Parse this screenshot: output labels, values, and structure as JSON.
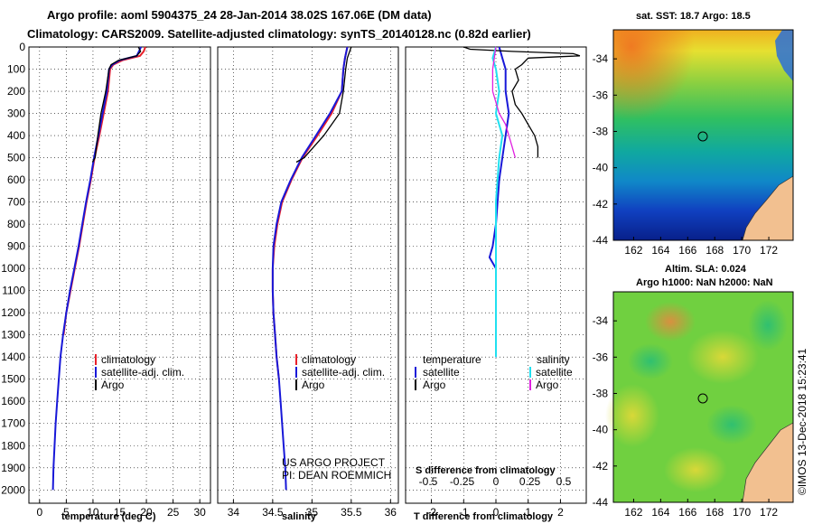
{
  "header": {
    "line1": "Argo profile: aoml 5904375_24 28-Jan-2014 38.02S 167.06E (DM data)",
    "line2": "Climatology: CARS2009. Satellite-adjusted climatology: synTS_20140128.nc (0.82d earlier)"
  },
  "sst_label": "sat. SST: 18.7 Argo: 18.5",
  "altim_label1": "Altim. SLA: 0.024",
  "altim_label2": "Argo h1000: NaN h2000: NaN",
  "credit_vertical": "©IMOS 13-Dec-2018 15:23:41",
  "project_line1": "US ARGO PROJECT",
  "project_line2": "PI: DEAN ROEMMICH",
  "legend": {
    "climatology": "climatology",
    "satellite_adj": "satellite-adj. clim.",
    "argo": "Argo",
    "temperature_heading": "temperature",
    "salinity_heading": "salinity",
    "satellite": "satellite"
  },
  "colors": {
    "climatology": "#e8202a",
    "satellite": "#1818d8",
    "argo": "#000000",
    "sal_satellite": "#20e0f0",
    "sal_argo": "#e020e0",
    "land": "#f2c090"
  },
  "chart_data": [
    {
      "type": "line",
      "name": "temperature-profile",
      "xlabel": "temperature (deg C)",
      "ylabel": "",
      "xlim": [
        -2,
        32
      ],
      "ylim": [
        2060,
        0
      ],
      "x_ticks": [
        0,
        5,
        10,
        15,
        20,
        25,
        30
      ],
      "y_ticks": [
        0,
        100,
        200,
        300,
        400,
        500,
        600,
        700,
        800,
        900,
        1000,
        1100,
        1200,
        1300,
        1400,
        1500,
        1600,
        1700,
        1800,
        1900,
        2000
      ],
      "series": [
        {
          "name": "climatology",
          "points": [
            [
              19.8,
              0
            ],
            [
              19.5,
              20
            ],
            [
              18.8,
              40
            ],
            [
              15.5,
              60
            ],
            [
              13.8,
              80
            ],
            [
              13.2,
              100
            ],
            [
              12.8,
              200
            ],
            [
              12.0,
              300
            ],
            [
              11.2,
              400
            ],
            [
              10.3,
              500
            ],
            [
              9.6,
              600
            ],
            [
              8.8,
              700
            ],
            [
              8.1,
              800
            ],
            [
              7.4,
              900
            ],
            [
              6.6,
              1000
            ],
            [
              5.8,
              1100
            ],
            [
              5.0,
              1200
            ],
            [
              4.5,
              1300
            ]
          ]
        },
        {
          "name": "satellite-adj. clim.",
          "points": [
            [
              19.0,
              0
            ],
            [
              18.6,
              20
            ],
            [
              18.2,
              40
            ],
            [
              15.0,
              60
            ],
            [
              13.6,
              80
            ],
            [
              13.0,
              100
            ],
            [
              12.6,
              200
            ],
            [
              11.8,
              300
            ],
            [
              11.0,
              400
            ],
            [
              10.2,
              500
            ],
            [
              9.5,
              600
            ],
            [
              8.7,
              700
            ],
            [
              8.0,
              800
            ],
            [
              7.3,
              900
            ],
            [
              6.5,
              1000
            ],
            [
              5.7,
              1100
            ],
            [
              5.0,
              1200
            ],
            [
              4.4,
              1300
            ],
            [
              3.9,
              1400
            ],
            [
              3.6,
              1500
            ],
            [
              3.3,
              1600
            ],
            [
              3.0,
              1700
            ],
            [
              2.8,
              1800
            ],
            [
              2.6,
              1900
            ],
            [
              2.5,
              2000
            ]
          ]
        },
        {
          "name": "Argo",
          "points": [
            [
              18.5,
              0
            ],
            [
              18.9,
              20
            ],
            [
              18.2,
              40
            ],
            [
              14.8,
              60
            ],
            [
              13.4,
              80
            ],
            [
              13.0,
              100
            ],
            [
              12.4,
              200
            ],
            [
              11.5,
              300
            ],
            [
              10.9,
              400
            ],
            [
              10.4,
              500
            ],
            [
              9.9,
              520
            ]
          ]
        }
      ]
    },
    {
      "type": "line",
      "name": "salinity-profile",
      "xlabel": "salinity",
      "ylabel": "",
      "xlim": [
        33.8,
        36.1
      ],
      "ylim": [
        2060,
        0
      ],
      "x_ticks": [
        34,
        34.5,
        35,
        35.5,
        36
      ],
      "series": [
        {
          "name": "climatology",
          "points": [
            [
              35.45,
              0
            ],
            [
              35.42,
              50
            ],
            [
              35.4,
              100
            ],
            [
              35.38,
              200
            ],
            [
              35.25,
              300
            ],
            [
              35.07,
              400
            ],
            [
              34.88,
              500
            ],
            [
              34.74,
              600
            ],
            [
              34.62,
              700
            ],
            [
              34.56,
              800
            ],
            [
              34.52,
              900
            ],
            [
              34.5,
              1000
            ],
            [
              34.5,
              1100
            ],
            [
              34.51,
              1200
            ],
            [
              34.53,
              1300
            ],
            [
              34.55,
              1400
            ],
            [
              34.58,
              1500
            ]
          ]
        },
        {
          "name": "satellite-adj. clim.",
          "points": [
            [
              35.45,
              0
            ],
            [
              35.42,
              50
            ],
            [
              35.4,
              100
            ],
            [
              35.38,
              200
            ],
            [
              35.23,
              300
            ],
            [
              35.05,
              400
            ],
            [
              34.87,
              500
            ],
            [
              34.73,
              600
            ],
            [
              34.61,
              700
            ],
            [
              34.55,
              800
            ],
            [
              34.51,
              900
            ],
            [
              34.5,
              1000
            ],
            [
              34.5,
              1100
            ],
            [
              34.51,
              1200
            ],
            [
              34.53,
              1300
            ],
            [
              34.55,
              1400
            ],
            [
              34.58,
              1500
            ],
            [
              34.6,
              1600
            ],
            [
              34.62,
              1700
            ],
            [
              34.64,
              1800
            ],
            [
              34.66,
              1900
            ],
            [
              34.67,
              2000
            ]
          ]
        },
        {
          "name": "Argo",
          "points": [
            [
              35.5,
              0
            ],
            [
              35.45,
              50
            ],
            [
              35.43,
              100
            ],
            [
              35.4,
              200
            ],
            [
              35.35,
              300
            ],
            [
              35.15,
              400
            ],
            [
              34.9,
              500
            ],
            [
              34.8,
              520
            ]
          ]
        }
      ]
    },
    {
      "type": "line",
      "name": "difference-profile",
      "xlabel": "T difference from climatology",
      "x2label": "S difference from climatology",
      "xlim": [
        -2.8,
        2.8
      ],
      "x_ticks": [
        -2,
        -1,
        0,
        1,
        2
      ],
      "x2_ticks": [
        "-0.5",
        "-0.25",
        "0",
        "0.25",
        "0.5"
      ],
      "x2_tick_values": [
        -2.1,
        -1.05,
        0,
        1.05,
        2.1
      ],
      "ylim": [
        2060,
        0
      ],
      "series": [
        {
          "name": "temperature satellite",
          "points": [
            [
              0.1,
              0
            ],
            [
              0.2,
              50
            ],
            [
              0.3,
              100
            ],
            [
              0.3,
              200
            ],
            [
              0.4,
              300
            ],
            [
              0.3,
              400
            ],
            [
              0.2,
              500
            ],
            [
              0.1,
              600
            ],
            [
              0.0,
              800
            ],
            [
              -0.1,
              900
            ],
            [
              -0.2,
              950
            ],
            [
              0.0,
              1000
            ],
            [
              0.0,
              1200
            ],
            [
              0.0,
              1400
            ]
          ]
        },
        {
          "name": "temperature Argo",
          "points": [
            [
              -1.0,
              0
            ],
            [
              -0.8,
              10
            ],
            [
              0.5,
              20
            ],
            [
              2.4,
              30
            ],
            [
              2.6,
              40
            ],
            [
              1.0,
              50
            ],
            [
              0.8,
              80
            ],
            [
              0.6,
              100
            ],
            [
              0.7,
              150
            ],
            [
              0.5,
              200
            ],
            [
              0.6,
              260
            ],
            [
              0.8,
              300
            ],
            [
              1.0,
              350
            ],
            [
              1.2,
              400
            ],
            [
              1.3,
              450
            ],
            [
              1.3,
              500
            ]
          ]
        },
        {
          "name": "salinity satellite",
          "points": [
            [
              0.0,
              0
            ],
            [
              -0.1,
              50
            ],
            [
              0.0,
              100
            ],
            [
              0.1,
              200
            ],
            [
              0.0,
              300
            ],
            [
              0.2,
              400
            ],
            [
              0.1,
              500
            ],
            [
              0.0,
              700
            ],
            [
              0.0,
              900
            ],
            [
              0.0,
              1100
            ],
            [
              0.0,
              1300
            ],
            [
              0.0,
              1400
            ]
          ]
        },
        {
          "name": "salinity Argo",
          "points": [
            [
              0.0,
              0
            ],
            [
              -0.1,
              100
            ],
            [
              -0.1,
              200
            ],
            [
              0.1,
              300
            ],
            [
              0.3,
              350
            ],
            [
              0.4,
              400
            ],
            [
              0.5,
              450
            ],
            [
              0.6,
              500
            ]
          ]
        }
      ]
    },
    {
      "type": "heatmap",
      "name": "sst-map",
      "title": "sat. SST: 18.7 Argo: 18.5",
      "x_ticks": [
        162,
        164,
        166,
        168,
        170,
        172
      ],
      "y_ticks": [
        -34,
        -36,
        -38,
        -40,
        -42,
        -44
      ],
      "xlim": [
        160.5,
        173.8
      ],
      "ylim": [
        -44,
        -32.4
      ],
      "marker": [
        167.06,
        -38.02
      ]
    },
    {
      "type": "heatmap",
      "name": "sla-map",
      "title": "Altim. SLA: 0.024",
      "x_ticks": [
        162,
        164,
        166,
        168,
        170,
        172
      ],
      "y_ticks": [
        -34,
        -36,
        -38,
        -40,
        -42,
        -44
      ],
      "xlim": [
        160.5,
        173.8
      ],
      "ylim": [
        -44,
        -32.4
      ],
      "marker": [
        167.06,
        -38.02
      ]
    }
  ]
}
